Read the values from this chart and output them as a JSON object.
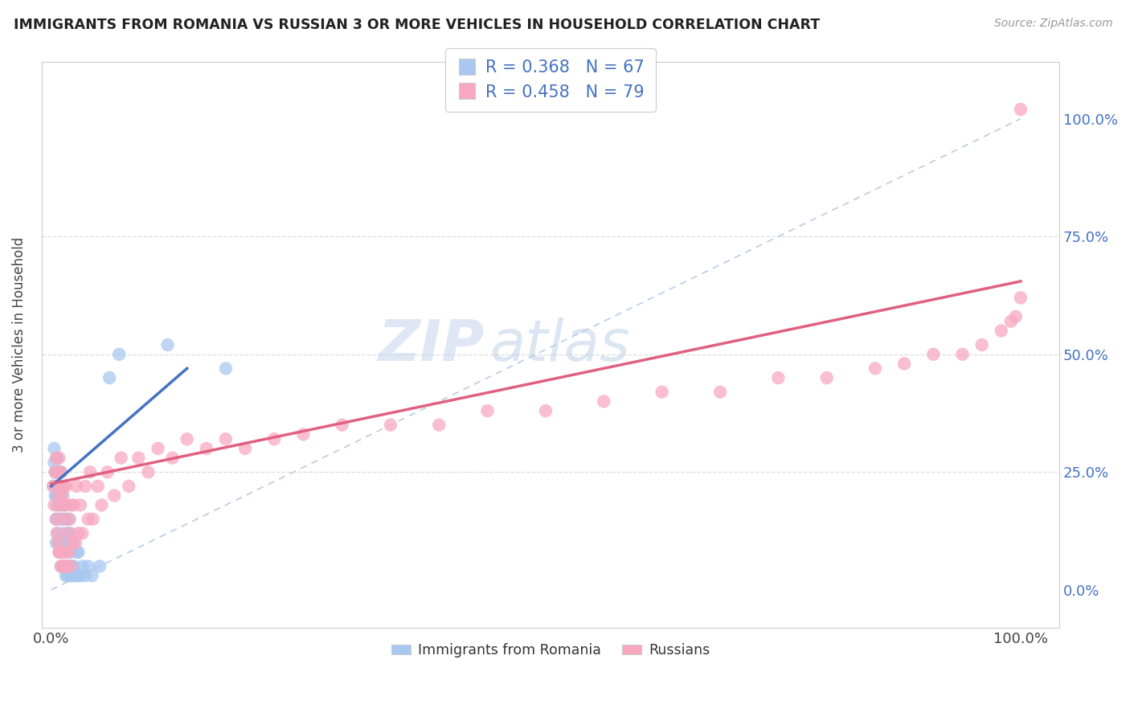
{
  "title": "IMMIGRANTS FROM ROMANIA VS RUSSIAN 3 OR MORE VEHICLES IN HOUSEHOLD CORRELATION CHART",
  "source": "Source: ZipAtlas.com",
  "ylabel": "3 or more Vehicles in Household",
  "ytick_labels": [
    "0.0%",
    "25.0%",
    "50.0%",
    "75.0%",
    "100.0%"
  ],
  "ytick_values": [
    0.0,
    0.25,
    0.5,
    0.75,
    1.0
  ],
  "xtick_labels": [
    "0.0%",
    "100.0%"
  ],
  "xtick_values": [
    0.0,
    1.0
  ],
  "xlim": [
    -0.01,
    1.04
  ],
  "ylim": [
    -0.08,
    1.12
  ],
  "legend_romania_label": "Immigrants from Romania",
  "legend_russian_label": "Russians",
  "romania_R": "R = 0.368",
  "romania_N": "N = 67",
  "russian_R": "R = 0.458",
  "russian_N": "N = 79",
  "romania_color": "#a8c8f0",
  "russian_color": "#f8a8c0",
  "romania_line_color": "#4472c4",
  "russian_line_color": "#e06080",
  "diagonal_color": "#b8cce4",
  "watermark_zip": "ZIP",
  "watermark_atlas": "atlas",
  "romania_x": [
    0.002,
    0.003,
    0.003,
    0.004,
    0.004,
    0.005,
    0.005,
    0.005,
    0.005,
    0.006,
    0.006,
    0.006,
    0.006,
    0.007,
    0.007,
    0.007,
    0.007,
    0.008,
    0.008,
    0.008,
    0.009,
    0.009,
    0.009,
    0.01,
    0.01,
    0.01,
    0.01,
    0.011,
    0.011,
    0.011,
    0.012,
    0.012,
    0.012,
    0.013,
    0.013,
    0.014,
    0.014,
    0.015,
    0.015,
    0.015,
    0.016,
    0.016,
    0.017,
    0.017,
    0.018,
    0.018,
    0.019,
    0.02,
    0.02,
    0.021,
    0.022,
    0.022,
    0.023,
    0.025,
    0.026,
    0.027,
    0.028,
    0.03,
    0.032,
    0.035,
    0.038,
    0.042,
    0.05,
    0.06,
    0.07,
    0.12,
    0.18
  ],
  "romania_y": [
    0.22,
    0.27,
    0.3,
    0.2,
    0.25,
    0.1,
    0.15,
    0.2,
    0.25,
    0.12,
    0.18,
    0.22,
    0.28,
    0.1,
    0.15,
    0.2,
    0.25,
    0.08,
    0.15,
    0.22,
    0.1,
    0.18,
    0.25,
    0.05,
    0.1,
    0.18,
    0.25,
    0.08,
    0.15,
    0.22,
    0.05,
    0.12,
    0.2,
    0.08,
    0.18,
    0.05,
    0.15,
    0.03,
    0.1,
    0.18,
    0.05,
    0.15,
    0.03,
    0.12,
    0.05,
    0.15,
    0.08,
    0.03,
    0.12,
    0.05,
    0.03,
    0.1,
    0.05,
    0.03,
    0.08,
    0.03,
    0.08,
    0.03,
    0.05,
    0.03,
    0.05,
    0.03,
    0.05,
    0.45,
    0.5,
    0.52,
    0.47
  ],
  "russian_x": [
    0.002,
    0.003,
    0.004,
    0.005,
    0.005,
    0.006,
    0.006,
    0.007,
    0.007,
    0.008,
    0.008,
    0.008,
    0.009,
    0.009,
    0.01,
    0.01,
    0.011,
    0.011,
    0.012,
    0.012,
    0.013,
    0.013,
    0.014,
    0.014,
    0.015,
    0.015,
    0.016,
    0.017,
    0.018,
    0.019,
    0.02,
    0.02,
    0.022,
    0.023,
    0.025,
    0.026,
    0.028,
    0.03,
    0.032,
    0.035,
    0.038,
    0.04,
    0.043,
    0.048,
    0.052,
    0.058,
    0.065,
    0.072,
    0.08,
    0.09,
    0.1,
    0.11,
    0.125,
    0.14,
    0.16,
    0.18,
    0.2,
    0.23,
    0.26,
    0.3,
    0.35,
    0.4,
    0.45,
    0.51,
    0.57,
    0.63,
    0.69,
    0.75,
    0.8,
    0.85,
    0.88,
    0.91,
    0.94,
    0.96,
    0.98,
    0.99,
    0.995,
    1.0,
    1.0
  ],
  "russian_y": [
    0.22,
    0.18,
    0.25,
    0.15,
    0.28,
    0.12,
    0.25,
    0.1,
    0.22,
    0.08,
    0.2,
    0.28,
    0.08,
    0.18,
    0.05,
    0.25,
    0.08,
    0.2,
    0.05,
    0.15,
    0.05,
    0.22,
    0.05,
    0.18,
    0.05,
    0.22,
    0.08,
    0.12,
    0.08,
    0.15,
    0.05,
    0.18,
    0.1,
    0.18,
    0.1,
    0.22,
    0.12,
    0.18,
    0.12,
    0.22,
    0.15,
    0.25,
    0.15,
    0.22,
    0.18,
    0.25,
    0.2,
    0.28,
    0.22,
    0.28,
    0.25,
    0.3,
    0.28,
    0.32,
    0.3,
    0.32,
    0.3,
    0.32,
    0.33,
    0.35,
    0.35,
    0.35,
    0.38,
    0.38,
    0.4,
    0.42,
    0.42,
    0.45,
    0.45,
    0.47,
    0.48,
    0.5,
    0.5,
    0.52,
    0.55,
    0.57,
    0.58,
    0.62,
    1.02
  ],
  "romania_line_x": [
    0.0,
    0.14
  ],
  "romania_line_y": [
    0.22,
    0.47
  ],
  "russian_line_x": [
    0.0,
    1.0
  ],
  "russian_line_y": [
    0.225,
    0.655
  ]
}
